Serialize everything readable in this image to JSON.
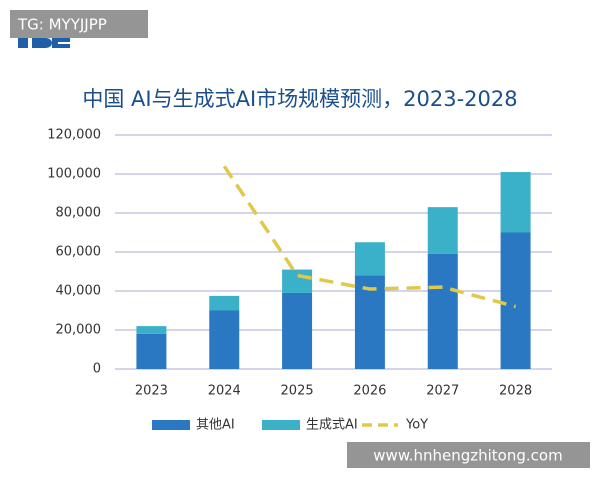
{
  "chart_data": {
    "type": "stacked-bar-line",
    "title": "中国 AI与生成式AI市场规模预测，2023-2028",
    "categories": [
      "2023",
      "2024",
      "2025",
      "2026",
      "2027",
      "2028"
    ],
    "series": [
      {
        "name": "其他AI",
        "color": "#2b78c2",
        "type": "bar",
        "values": [
          18000,
          30000,
          39000,
          48000,
          59000,
          70000
        ]
      },
      {
        "name": "生成式AI",
        "color": "#3bb0c9",
        "type": "bar",
        "values": [
          4000,
          7500,
          12000,
          17000,
          24000,
          31000
        ]
      },
      {
        "name": "YoY",
        "color": "#e2c84a",
        "type": "line",
        "values": [
          null,
          104000,
          48000,
          41000,
          42000,
          32000
        ]
      }
    ],
    "ylim": [
      0,
      120000
    ],
    "yticks": [
      0,
      {
        "value": 20000,
        "label": "20,000"
      },
      {
        "value": 40000,
        "label": "40,000"
      },
      {
        "value": 60000,
        "label": "60,000"
      },
      {
        "value": 80000,
        "label": "80,000"
      },
      {
        "value": 100000,
        "label": "100,000"
      },
      {
        "value": 120000,
        "label": "120,000"
      }
    ],
    "grid": true
  },
  "watermarks": {
    "top_left": "TG: MYYJJPP",
    "bottom_right": "www.hnhengzhitong.com"
  }
}
